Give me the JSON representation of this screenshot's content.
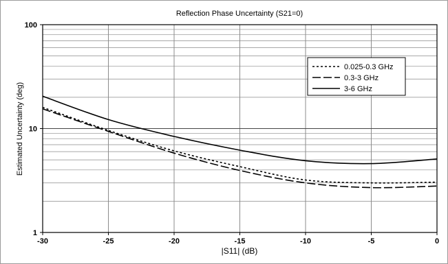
{
  "chart_data": {
    "type": "line",
    "title": "Reflection Phase Uncertainty (S21=0)",
    "xlabel": "|S11| (dB)",
    "ylabel": "Estimated Uncertainty (deg)",
    "xlim": [
      -30,
      0
    ],
    "ylim": [
      1,
      100
    ],
    "yscale": "log",
    "grid": true,
    "legend": "upper-right",
    "x_ticks": [
      -30,
      -25,
      -20,
      -15,
      -10,
      -5,
      0
    ],
    "y_ticks": [
      1,
      10,
      100
    ],
    "x": [
      -30,
      -25,
      -20,
      -15,
      -10,
      -5,
      0
    ],
    "series": [
      {
        "name": "0.025-0.3 GHz",
        "style": "dotted",
        "values": [
          16,
          9.6,
          6.1,
          4.3,
          3.2,
          3.0,
          3.05
        ]
      },
      {
        "name": "0.3-3 GHz",
        "style": "dashed",
        "values": [
          15.5,
          9.4,
          5.8,
          3.95,
          3.0,
          2.7,
          2.8
        ]
      },
      {
        "name": "3-6 GHz",
        "style": "solid",
        "values": [
          20.5,
          12.2,
          8.4,
          6.2,
          4.9,
          4.6,
          5.1
        ]
      }
    ]
  }
}
